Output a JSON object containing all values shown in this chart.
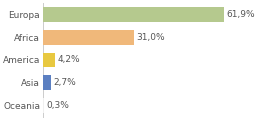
{
  "categories": [
    "Europa",
    "Africa",
    "America",
    "Asia",
    "Oceania"
  ],
  "values": [
    61.9,
    31.0,
    4.2,
    2.7,
    0.3
  ],
  "labels": [
    "61,9%",
    "31,0%",
    "4,2%",
    "2,7%",
    "0,3%"
  ],
  "bar_colors": [
    "#b5c98e",
    "#f0b87a",
    "#e8c840",
    "#5b7fc1",
    "#f0f0f0"
  ],
  "background_color": "#ffffff",
  "xlim": [
    0,
    80
  ],
  "bar_height": 0.65,
  "label_fontsize": 6.5,
  "tick_fontsize": 6.5,
  "grid_color": "#cccccc",
  "text_color": "#555555"
}
